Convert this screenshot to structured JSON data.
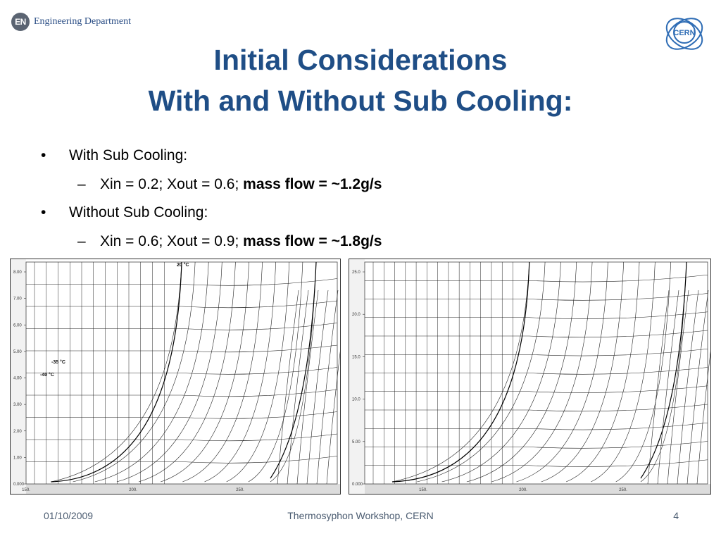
{
  "header": {
    "logo_badge": "EN",
    "logo_text": "Engineering Department",
    "cern_logo_text": "CERN"
  },
  "title": {
    "line1": "Initial Considerations",
    "line2": "With and Without Sub Cooling:"
  },
  "bullets": [
    {
      "label": "With Sub Cooling:",
      "detail_plain": "Xin = 0.2; Xout = 0.6; ",
      "detail_bold": "mass flow = ~1.2g/s"
    },
    {
      "label": "Without Sub Cooling:",
      "detail_plain": "Xin = 0.6; Xout = 0.9; ",
      "detail_bold": "mass flow = ~1.8g/s"
    }
  ],
  "charts": [
    {
      "y_ticks": [
        "8.00",
        "7.00",
        "6.00",
        "5.00",
        "4.00",
        "3.00",
        "2.00",
        "1.00",
        "0.000"
      ],
      "x_ticks": [
        "150.",
        "200.",
        "250."
      ],
      "isotherm_labels": [
        "20 °C",
        "-35 °C",
        "-40 °C"
      ]
    },
    {
      "y_ticks": [
        "25.0",
        "20.0",
        "15.0",
        "10.0",
        "5.00",
        "0.000"
      ],
      "x_ticks": [
        "150.",
        "200.",
        "250."
      ]
    }
  ],
  "footer": {
    "date": "01/10/2009",
    "center": "Thermosyphon Workshop, CERN",
    "page": "4"
  }
}
